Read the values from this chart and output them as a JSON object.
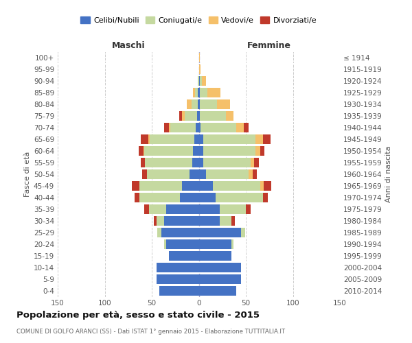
{
  "age_groups": [
    "0-4",
    "5-9",
    "10-14",
    "15-19",
    "20-24",
    "25-29",
    "30-34",
    "35-39",
    "40-44",
    "45-49",
    "50-54",
    "55-59",
    "60-64",
    "65-69",
    "70-74",
    "75-79",
    "80-84",
    "85-89",
    "90-94",
    "95-99",
    "100+"
  ],
  "birth_years": [
    "2010-2014",
    "2005-2009",
    "2000-2004",
    "1995-1999",
    "1990-1994",
    "1985-1989",
    "1980-1984",
    "1975-1979",
    "1970-1974",
    "1965-1969",
    "1960-1964",
    "1955-1959",
    "1950-1954",
    "1945-1949",
    "1940-1944",
    "1935-1939",
    "1930-1934",
    "1925-1929",
    "1920-1924",
    "1915-1919",
    "≤ 1914"
  ],
  "colors": {
    "celibe": "#4472C4",
    "coniugato": "#C5D9A0",
    "vedovo": "#F5C06A",
    "divorziato": "#C0392B"
  },
  "title": "Popolazione per età, sesso e stato civile - 2015",
  "subtitle": "COMUNE DI GOLFO ARANCI (SS) - Dati ISTAT 1° gennaio 2015 - Elaborazione TUTTITALIA.IT",
  "maschi_label": "Maschi",
  "femmine_label": "Femmine",
  "ylabel_left": "Fasce di età",
  "ylabel_right": "Anni di nascita",
  "legend_labels": [
    "Celibi/Nubili",
    "Coniugati/e",
    "Vedovi/e",
    "Divorziati/e"
  ],
  "xlim": 150,
  "m_celibe": [
    42,
    45,
    45,
    32,
    35,
    40,
    37,
    35,
    20,
    18,
    10,
    7,
    6,
    5,
    3,
    2,
    1,
    1,
    0,
    0,
    0
  ],
  "m_coniugato": [
    0,
    0,
    0,
    0,
    2,
    4,
    8,
    18,
    43,
    45,
    45,
    50,
    52,
    47,
    27,
    13,
    7,
    3,
    1,
    0,
    0
  ],
  "m_vedovo": [
    0,
    0,
    0,
    0,
    0,
    0,
    0,
    0,
    0,
    0,
    0,
    0,
    1,
    2,
    2,
    3,
    5,
    2,
    0,
    0,
    0
  ],
  "m_divorziato": [
    0,
    0,
    0,
    0,
    0,
    0,
    3,
    5,
    5,
    8,
    5,
    5,
    5,
    8,
    5,
    3,
    0,
    0,
    0,
    0,
    0
  ],
  "f_nubile": [
    40,
    45,
    45,
    35,
    35,
    45,
    22,
    22,
    18,
    15,
    8,
    5,
    5,
    5,
    2,
    1,
    1,
    1,
    1,
    0,
    0
  ],
  "f_coniugata": [
    0,
    0,
    0,
    0,
    2,
    4,
    13,
    28,
    50,
    50,
    45,
    50,
    55,
    55,
    38,
    28,
    18,
    8,
    2,
    0,
    0
  ],
  "f_vedova": [
    0,
    0,
    0,
    0,
    0,
    0,
    0,
    0,
    0,
    4,
    4,
    4,
    5,
    8,
    8,
    8,
    14,
    14,
    5,
    2,
    1
  ],
  "f_divorziata": [
    0,
    0,
    0,
    0,
    0,
    0,
    3,
    5,
    5,
    8,
    5,
    5,
    5,
    8,
    5,
    0,
    0,
    0,
    0,
    0,
    0
  ]
}
